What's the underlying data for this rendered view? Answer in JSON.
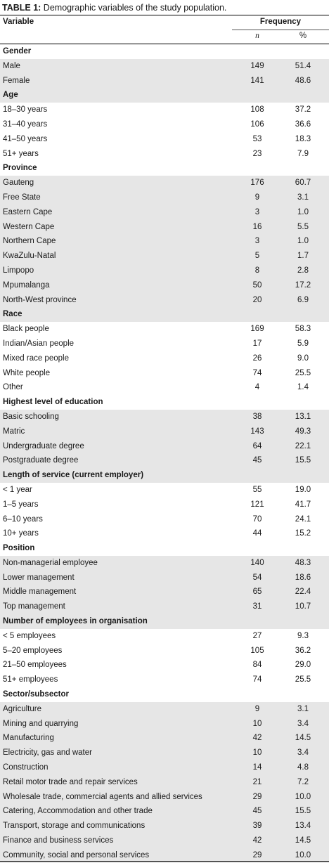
{
  "caption": {
    "label": "TABLE 1:",
    "text": " Demographic variables of the study population."
  },
  "header": {
    "variable": "Variable",
    "frequency": "Frequency",
    "n": "n",
    "pct": "%"
  },
  "groups": [
    {
      "title": "Gender",
      "rows": [
        [
          "Male",
          "149",
          "51.4"
        ],
        [
          "Female",
          "141",
          "48.6"
        ]
      ]
    },
    {
      "title": "Age",
      "rows": [
        [
          "18–30 years",
          "108",
          "37.2"
        ],
        [
          "31–40 years",
          "106",
          "36.6"
        ],
        [
          "41–50 years",
          "53",
          "18.3"
        ],
        [
          "51+ years",
          "23",
          "7.9"
        ]
      ]
    },
    {
      "title": "Province",
      "rows": [
        [
          "Gauteng",
          "176",
          "60.7"
        ],
        [
          "Free State",
          "9",
          "3.1"
        ],
        [
          "Eastern Cape",
          "3",
          "1.0"
        ],
        [
          "Western Cape",
          "16",
          "5.5"
        ],
        [
          "Northern Cape",
          "3",
          "1.0"
        ],
        [
          "KwaZulu-Natal",
          "5",
          "1.7"
        ],
        [
          "Limpopo",
          "8",
          "2.8"
        ],
        [
          "Mpumalanga",
          "50",
          "17.2"
        ],
        [
          "North-West province",
          "20",
          "6.9"
        ]
      ]
    },
    {
      "title": "Race",
      "rows": [
        [
          "Black people",
          "169",
          "58.3"
        ],
        [
          "Indian/Asian people",
          "17",
          "5.9"
        ],
        [
          "Mixed race people",
          "26",
          "9.0"
        ],
        [
          "White people",
          "74",
          "25.5"
        ],
        [
          "Other",
          "4",
          "1.4"
        ]
      ]
    },
    {
      "title": "Highest level of education",
      "rows": [
        [
          "Basic schooling",
          "38",
          "13.1"
        ],
        [
          "Matric",
          "143",
          "49.3"
        ],
        [
          "Undergraduate degree",
          "64",
          "22.1"
        ],
        [
          "Postgraduate degree",
          "45",
          "15.5"
        ]
      ]
    },
    {
      "title": "Length of service (current employer)",
      "rows": [
        [
          "< 1 year",
          "55",
          "19.0"
        ],
        [
          "1–5 years",
          "121",
          "41.7"
        ],
        [
          "6–10 years",
          "70",
          "24.1"
        ],
        [
          "10+ years",
          "44",
          "15.2"
        ]
      ]
    },
    {
      "title": "Position",
      "rows": [
        [
          "Non-managerial employee",
          "140",
          "48.3"
        ],
        [
          "Lower management",
          "54",
          "18.6"
        ],
        [
          "Middle management",
          "65",
          "22.4"
        ],
        [
          "Top management",
          "31",
          "10.7"
        ]
      ]
    },
    {
      "title": "Number of employees in organisation",
      "rows": [
        [
          "< 5 employees",
          "27",
          "9.3"
        ],
        [
          "5–20 employees",
          "105",
          "36.2"
        ],
        [
          "21–50 employees",
          "84",
          "29.0"
        ],
        [
          "51+ employees",
          "74",
          "25.5"
        ]
      ]
    },
    {
      "title": "Sector/subsector",
      "rows": [
        [
          "Agriculture",
          "9",
          "3.1"
        ],
        [
          "Mining and quarrying",
          "10",
          "3.4"
        ],
        [
          "Manufacturing",
          "42",
          "14.5"
        ],
        [
          "Electricity, gas and water",
          "10",
          "3.4"
        ],
        [
          "Construction",
          "14",
          "4.8"
        ],
        [
          "Retail motor trade and repair services",
          "21",
          "7.2"
        ],
        [
          "Wholesale trade, commercial agents and allied services",
          "29",
          "10.0"
        ],
        [
          "Catering, Accommodation and other trade",
          "45",
          "15.5"
        ],
        [
          "Transport, storage and communications",
          "39",
          "13.4"
        ],
        [
          "Finance and business services",
          "42",
          "14.5"
        ],
        [
          "Community, social and personal services",
          "29",
          "10.0"
        ]
      ]
    }
  ]
}
